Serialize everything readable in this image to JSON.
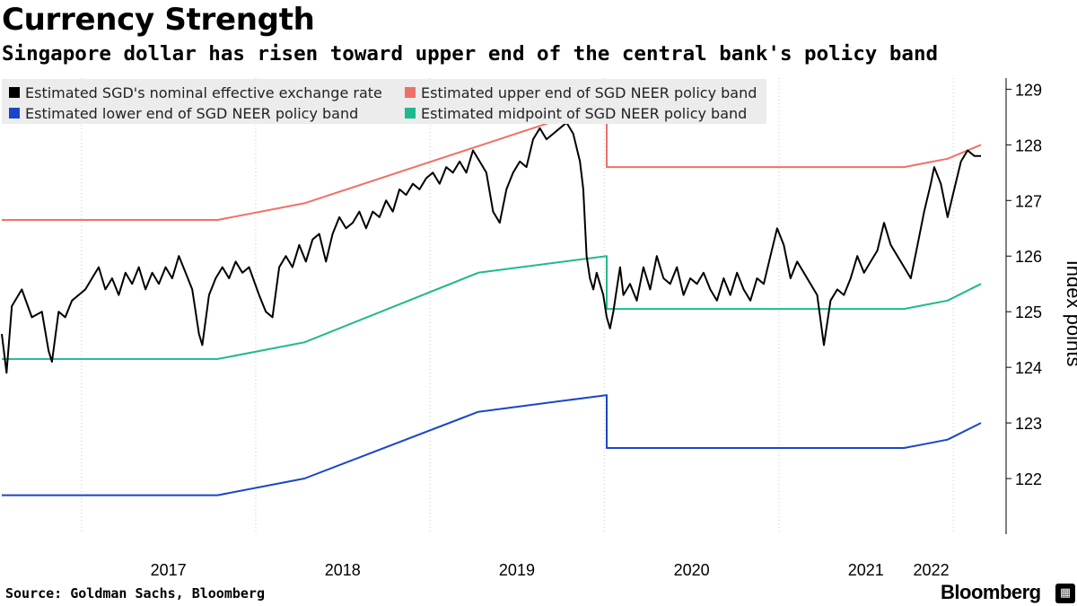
{
  "header": {
    "title": "Currency Strength",
    "subtitle": "Singapore dollar has risen toward upper end of the central bank's policy band"
  },
  "footer": {
    "source": "Source: Goldman Sachs, Bloomberg",
    "brand": "Bloomberg",
    "brand_icon": "bloomberg-terminal-icon"
  },
  "colors": {
    "neer": "#000000",
    "upper": "#f07069",
    "lower": "#1a46c8",
    "mid": "#1fb98e",
    "legend_bg": "#ececec",
    "grid": "#c8c8c8",
    "axis": "#000000"
  },
  "chart_data": {
    "type": "line",
    "title": "Currency Strength",
    "subtitle": "Singapore dollar has risen toward upper end of the central bank's policy band",
    "xlabel": "",
    "ylabel": "Index points",
    "x_range": [
      "2016-07-18",
      "2022-02-28"
    ],
    "x_tick_labels": [
      "2017",
      "2018",
      "2019",
      "2020",
      "2021",
      "2022"
    ],
    "x_tick_dates": [
      "2017-01-01",
      "2018-01-01",
      "2019-01-01",
      "2020-01-01",
      "2021-01-01",
      "2022-01-01"
    ],
    "ylim": [
      121,
      129.2
    ],
    "y_ticks": [
      122,
      123,
      124,
      125,
      126,
      127,
      128,
      129
    ],
    "y_axis_side": "right",
    "grid": "vertical-dotted",
    "legend_position": "top-left",
    "series": [
      {
        "name": "Estimated SGD's nominal effective exchange rate",
        "color": "#000000",
        "points": [
          [
            "2016-07-18",
            124.6
          ],
          [
            "2016-07-28",
            123.9
          ],
          [
            "2016-08-08",
            125.1
          ],
          [
            "2016-08-29",
            125.4
          ],
          [
            "2016-09-19",
            124.9
          ],
          [
            "2016-10-10",
            125.0
          ],
          [
            "2016-10-24",
            124.3
          ],
          [
            "2016-10-31",
            124.1
          ],
          [
            "2016-11-14",
            125.0
          ],
          [
            "2016-11-28",
            124.9
          ],
          [
            "2016-12-12",
            125.2
          ],
          [
            "2016-12-26",
            125.3
          ],
          [
            "2017-01-09",
            125.4
          ],
          [
            "2017-01-23",
            125.6
          ],
          [
            "2017-02-06",
            125.8
          ],
          [
            "2017-02-20",
            125.4
          ],
          [
            "2017-03-06",
            125.6
          ],
          [
            "2017-03-20",
            125.3
          ],
          [
            "2017-04-03",
            125.7
          ],
          [
            "2017-04-17",
            125.5
          ],
          [
            "2017-05-01",
            125.8
          ],
          [
            "2017-05-15",
            125.4
          ],
          [
            "2017-05-29",
            125.7
          ],
          [
            "2017-06-12",
            125.5
          ],
          [
            "2017-06-26",
            125.8
          ],
          [
            "2017-07-10",
            125.6
          ],
          [
            "2017-07-24",
            126.0
          ],
          [
            "2017-08-07",
            125.7
          ],
          [
            "2017-08-21",
            125.4
          ],
          [
            "2017-09-04",
            124.6
          ],
          [
            "2017-09-11",
            124.4
          ],
          [
            "2017-09-25",
            125.3
          ],
          [
            "2017-10-09",
            125.6
          ],
          [
            "2017-10-23",
            125.8
          ],
          [
            "2017-11-06",
            125.6
          ],
          [
            "2017-11-20",
            125.9
          ],
          [
            "2017-12-04",
            125.7
          ],
          [
            "2017-12-18",
            125.8
          ],
          [
            "2018-01-08",
            125.3
          ],
          [
            "2018-01-22",
            125.0
          ],
          [
            "2018-02-05",
            124.9
          ],
          [
            "2018-02-19",
            125.8
          ],
          [
            "2018-03-05",
            126.0
          ],
          [
            "2018-03-19",
            125.8
          ],
          [
            "2018-04-02",
            126.2
          ],
          [
            "2018-04-16",
            125.9
          ],
          [
            "2018-04-30",
            126.3
          ],
          [
            "2018-05-14",
            126.4
          ],
          [
            "2018-05-28",
            125.9
          ],
          [
            "2018-06-11",
            126.4
          ],
          [
            "2018-06-25",
            126.7
          ],
          [
            "2018-07-09",
            126.5
          ],
          [
            "2018-07-23",
            126.6
          ],
          [
            "2018-08-06",
            126.8
          ],
          [
            "2018-08-20",
            126.5
          ],
          [
            "2018-09-03",
            126.8
          ],
          [
            "2018-09-17",
            126.7
          ],
          [
            "2018-10-01",
            127.0
          ],
          [
            "2018-10-15",
            126.8
          ],
          [
            "2018-10-29",
            127.2
          ],
          [
            "2018-11-12",
            127.1
          ],
          [
            "2018-11-26",
            127.3
          ],
          [
            "2018-12-10",
            127.2
          ],
          [
            "2018-12-24",
            127.4
          ],
          [
            "2019-01-07",
            127.5
          ],
          [
            "2019-01-21",
            127.3
          ],
          [
            "2019-02-04",
            127.6
          ],
          [
            "2019-02-18",
            127.5
          ],
          [
            "2019-03-04",
            127.7
          ],
          [
            "2019-03-18",
            127.5
          ],
          [
            "2019-04-01",
            127.9
          ],
          [
            "2019-04-15",
            127.7
          ],
          [
            "2019-04-29",
            127.5
          ],
          [
            "2019-05-13",
            126.8
          ],
          [
            "2019-05-27",
            126.6
          ],
          [
            "2019-06-10",
            127.2
          ],
          [
            "2019-06-24",
            127.5
          ],
          [
            "2019-07-08",
            127.7
          ],
          [
            "2019-07-22",
            127.6
          ],
          [
            "2019-08-05",
            128.1
          ],
          [
            "2019-08-19",
            128.3
          ],
          [
            "2019-09-02",
            128.1
          ],
          [
            "2019-09-16",
            128.2
          ],
          [
            "2019-09-30",
            128.3
          ],
          [
            "2019-10-14",
            128.4
          ],
          [
            "2019-10-28",
            128.2
          ],
          [
            "2019-11-11",
            127.7
          ],
          [
            "2019-11-18",
            127.2
          ],
          [
            "2019-11-25",
            126.0
          ],
          [
            "2019-12-02",
            125.6
          ],
          [
            "2019-12-09",
            125.4
          ],
          [
            "2019-12-16",
            125.7
          ],
          [
            "2019-12-23",
            125.5
          ],
          [
            "2019-12-30",
            125.3
          ],
          [
            "2020-01-06",
            124.9
          ],
          [
            "2020-01-13",
            124.7
          ],
          [
            "2020-01-20",
            125.0
          ],
          [
            "2020-01-27",
            125.4
          ],
          [
            "2020-02-03",
            125.8
          ],
          [
            "2020-02-10",
            125.3
          ],
          [
            "2020-02-24",
            125.5
          ],
          [
            "2020-03-09",
            125.2
          ],
          [
            "2020-03-23",
            125.8
          ],
          [
            "2020-04-06",
            125.4
          ],
          [
            "2020-04-20",
            126.0
          ],
          [
            "2020-05-04",
            125.6
          ],
          [
            "2020-05-18",
            125.5
          ],
          [
            "2020-06-01",
            125.8
          ],
          [
            "2020-06-15",
            125.3
          ],
          [
            "2020-06-29",
            125.6
          ],
          [
            "2020-07-13",
            125.5
          ],
          [
            "2020-07-27",
            125.7
          ],
          [
            "2020-08-10",
            125.4
          ],
          [
            "2020-08-24",
            125.2
          ],
          [
            "2020-09-07",
            125.6
          ],
          [
            "2020-09-21",
            125.3
          ],
          [
            "2020-10-05",
            125.7
          ],
          [
            "2020-10-19",
            125.4
          ],
          [
            "2020-11-02",
            125.2
          ],
          [
            "2020-11-16",
            125.6
          ],
          [
            "2020-11-30",
            125.5
          ],
          [
            "2020-12-14",
            126.0
          ],
          [
            "2020-12-28",
            126.5
          ],
          [
            "2021-01-11",
            126.2
          ],
          [
            "2021-01-25",
            125.6
          ],
          [
            "2021-02-08",
            125.9
          ],
          [
            "2021-02-22",
            125.7
          ],
          [
            "2021-03-08",
            125.5
          ],
          [
            "2021-03-22",
            125.3
          ],
          [
            "2021-04-05",
            124.4
          ],
          [
            "2021-04-19",
            125.2
          ],
          [
            "2021-05-03",
            125.4
          ],
          [
            "2021-05-17",
            125.3
          ],
          [
            "2021-05-31",
            125.6
          ],
          [
            "2021-06-14",
            126.0
          ],
          [
            "2021-06-28",
            125.7
          ],
          [
            "2021-07-12",
            125.9
          ],
          [
            "2021-07-26",
            126.1
          ],
          [
            "2021-08-09",
            126.6
          ],
          [
            "2021-08-23",
            126.2
          ],
          [
            "2021-09-06",
            126.0
          ],
          [
            "2021-09-20",
            125.8
          ],
          [
            "2021-10-04",
            125.6
          ],
          [
            "2021-10-18",
            126.2
          ],
          [
            "2021-11-01",
            126.8
          ],
          [
            "2021-11-15",
            127.3
          ],
          [
            "2021-11-22",
            127.6
          ],
          [
            "2021-12-06",
            127.3
          ],
          [
            "2021-12-20",
            126.7
          ],
          [
            "2022-01-03",
            127.2
          ],
          [
            "2022-01-17",
            127.7
          ],
          [
            "2022-01-31",
            127.9
          ],
          [
            "2022-02-14",
            127.8
          ],
          [
            "2022-02-28",
            127.8
          ]
        ]
      },
      {
        "name": "Estimated upper end of SGD NEER policy band",
        "color": "#f07069",
        "points": [
          [
            "2016-07-18",
            126.65
          ],
          [
            "2017-10-13",
            126.65
          ],
          [
            "2018-04-13",
            126.95
          ],
          [
            "2019-10-14",
            128.5
          ],
          [
            "2020-01-06",
            128.5
          ],
          [
            "2020-01-06",
            127.6
          ],
          [
            "2021-09-20",
            127.6
          ],
          [
            "2021-12-20",
            127.75
          ],
          [
            "2022-02-28",
            128.0
          ]
        ]
      },
      {
        "name": "Estimated lower end of SGD NEER policy band",
        "color": "#1a46c8",
        "points": [
          [
            "2016-07-18",
            121.7
          ],
          [
            "2017-10-13",
            121.7
          ],
          [
            "2018-04-13",
            122.0
          ],
          [
            "2019-04-12",
            123.2
          ],
          [
            "2020-01-06",
            123.5
          ],
          [
            "2020-01-06",
            122.55
          ],
          [
            "2021-09-20",
            122.55
          ],
          [
            "2021-12-20",
            122.7
          ],
          [
            "2022-02-28",
            123.0
          ]
        ]
      },
      {
        "name": "Estimated midpoint of SGD NEER policy band",
        "color": "#1fb98e",
        "points": [
          [
            "2016-07-18",
            124.15
          ],
          [
            "2017-10-13",
            124.15
          ],
          [
            "2018-04-13",
            124.45
          ],
          [
            "2019-04-12",
            125.7
          ],
          [
            "2020-01-06",
            126.0
          ],
          [
            "2020-01-06",
            125.05
          ],
          [
            "2021-09-20",
            125.05
          ],
          [
            "2021-12-20",
            125.2
          ],
          [
            "2022-02-28",
            125.5
          ]
        ]
      }
    ]
  }
}
